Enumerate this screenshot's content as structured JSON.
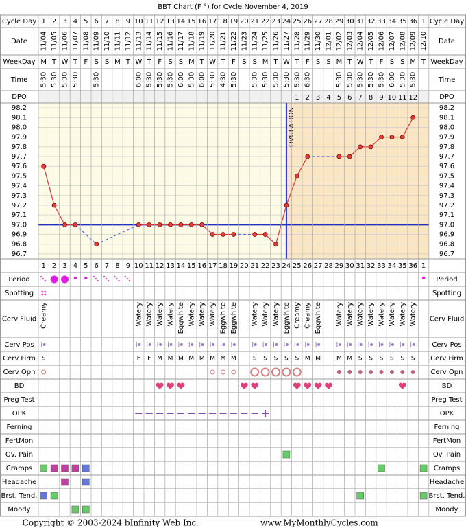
{
  "title": "BBT Chart (F °) for Cycle November 4, 2019",
  "labels": {
    "cycle_day": "Cycle Day",
    "date": "Date",
    "weekday": "WeekDay",
    "time": "Time",
    "dpo": "DPO"
  },
  "dates": [
    "11/04",
    "11/05",
    "11/06",
    "11/07",
    "11/08",
    "11/09",
    "11/10",
    "11/11",
    "11/12",
    "11/13",
    "11/14",
    "11/15",
    "11/16",
    "11/17",
    "11/18",
    "11/19",
    "11/20",
    "11/21",
    "11/22",
    "11/23",
    "11/24",
    "11/25",
    "11/26",
    "11/27",
    "11/28",
    "11/29",
    "11/30",
    "12/01",
    "12/02",
    "12/03",
    "12/04",
    "12/05",
    "12/06",
    "12/07",
    "12/08",
    "12/09",
    "12/10"
  ],
  "weekdays": [
    "M",
    "T",
    "W",
    "T",
    "F",
    "S",
    "S",
    "M",
    "T",
    "W",
    "T",
    "F",
    "S",
    "S",
    "M",
    "T",
    "W",
    "T",
    "F",
    "S",
    "S",
    "M",
    "T",
    "W",
    "T",
    "F",
    "S",
    "S",
    "M",
    "T",
    "W",
    "T",
    "F",
    "S",
    "S",
    "M",
    "T"
  ],
  "times": [
    "5:30",
    "5:30",
    "5:30",
    "5:30",
    null,
    "5:30",
    null,
    null,
    null,
    "6:00",
    "5:30",
    "5:30",
    "5:30",
    "6:00",
    "5:30",
    "6:00",
    "5:30",
    "4:30",
    "5:30",
    null,
    "5:30",
    "5:30",
    "5:30",
    "5:30",
    "5:30",
    "6:30",
    null,
    null,
    "5:30",
    "5:30",
    "5:30",
    "5:30",
    "5:30",
    "6:00",
    "5:30",
    "5:30",
    null
  ],
  "dpo": [
    null,
    null,
    null,
    null,
    null,
    null,
    null,
    null,
    null,
    null,
    null,
    null,
    null,
    null,
    null,
    null,
    null,
    null,
    null,
    null,
    null,
    null,
    null,
    null,
    1,
    2,
    3,
    4,
    5,
    6,
    7,
    8,
    9,
    10,
    11,
    12,
    null
  ],
  "chart_data": {
    "type": "line",
    "categories": [
      1,
      2,
      3,
      4,
      5,
      6,
      7,
      8,
      9,
      10,
      11,
      12,
      13,
      14,
      15,
      16,
      17,
      18,
      19,
      20,
      21,
      22,
      23,
      24,
      25,
      26,
      27,
      28,
      29,
      30,
      31,
      32,
      33,
      34,
      35,
      36,
      1
    ],
    "values": [
      97.6,
      97.2,
      97.0,
      97.0,
      null,
      96.8,
      null,
      null,
      null,
      97.0,
      97.0,
      97.0,
      97.0,
      97.0,
      97.0,
      97.0,
      96.9,
      96.9,
      96.9,
      null,
      96.9,
      96.9,
      96.8,
      97.2,
      97.5,
      97.7,
      null,
      null,
      97.7,
      97.7,
      97.8,
      97.8,
      97.9,
      97.9,
      97.9,
      98.1,
      null
    ],
    "color": "#e03030",
    "ylim": [
      96.65,
      98.25
    ],
    "yticks": [
      96.7,
      96.8,
      96.9,
      {
        "value": 97,
        "label": "97.0"
      },
      97.1,
      97.2,
      97.3,
      97.4,
      97.5,
      97.6,
      97.7,
      97.8,
      97.9,
      {
        "value": 98,
        "label": "98.0"
      },
      98.1,
      98.2
    ],
    "grid": true,
    "coverline": 97.0,
    "coverline_color": "#2030c0",
    "ovulation_day": 24,
    "ovulation_label": "OVULATION"
  },
  "rows": [
    {
      "label": "Period",
      "icons": {
        "0": "dots",
        "1": "big",
        "2": "big",
        "3": "dot",
        "4": "dot",
        "5": "dots",
        "6": "dots",
        "7": "dots",
        "8": "dots",
        "36": "dot"
      }
    },
    {
      "label": "Spotting",
      "icons": {
        "0": "spot"
      }
    },
    {
      "label": "Cerv Fluid",
      "texts": [
        "Creamy",
        null,
        null,
        null,
        null,
        null,
        null,
        null,
        null,
        "Watery",
        "Watery",
        "Watery",
        "Watery",
        "Eggwhite",
        "Watery",
        "Watery",
        "Watery",
        "Eggwhite",
        "Eggwhite",
        null,
        "Watery",
        "Watery",
        "Watery",
        "Eggwhite",
        "Creamy",
        "Creamy",
        "Eggwhite",
        null,
        "Watery",
        "Watery",
        "Watery",
        "Watery",
        "Watery",
        "Watery",
        "Watery",
        "Watery",
        null
      ]
    },
    {
      "label": "Cerv Pos",
      "icons": {
        "0": "pos",
        "9": "pos",
        "10": "pos",
        "11": "pos",
        "12": "pos",
        "13": "pos",
        "14": "pos",
        "15": "pos",
        "16": "pos",
        "17": "pos",
        "18": "pos",
        "20": "pos",
        "21": "pos",
        "22": "pos",
        "23": "pos",
        "24": "pos",
        "25": "pos",
        "26": "pos",
        "28": "pos",
        "29": "pos",
        "30": "pos",
        "31": "pos",
        "32": "pos",
        "33": "pos",
        "34": "pos",
        "35": "pos"
      }
    },
    {
      "label": "Cerv Firm",
      "texts": [
        "S",
        null,
        null,
        null,
        null,
        null,
        null,
        null,
        null,
        "F",
        "F",
        "M",
        "M",
        "M",
        "M",
        "M",
        "M",
        "M",
        "M",
        null,
        "S",
        "S",
        "S",
        "S",
        "S",
        "M",
        "M",
        null,
        "M",
        "M",
        "S",
        "S",
        "S",
        "S",
        "S",
        "S",
        null
      ]
    },
    {
      "label": "Cerv Opn",
      "icons": {
        "0": "o",
        "16": "o",
        "17": "o",
        "18": "o",
        "20": "O",
        "21": "O",
        "22": "O",
        "23": "O",
        "24": "O",
        "28": "fill",
        "29": "fill",
        "30": "fill",
        "31": "fill",
        "32": "fill",
        "33": "fill",
        "34": "fill",
        "35": "fill"
      }
    },
    {
      "label": "BD",
      "icons": {
        "11": "heart",
        "12": "heart",
        "13": "heart",
        "19": "heart",
        "20": "heart",
        "24": "heart",
        "25": "heart",
        "26": "heart",
        "27": "heart",
        "34": "heart"
      }
    },
    {
      "label": "Preg Test"
    },
    {
      "label": "OPK",
      "icons": {
        "9": "neg",
        "10": "neg",
        "11": "neg",
        "12": "neg",
        "13": "neg",
        "14": "neg",
        "15": "neg",
        "16": "neg",
        "17": "neg",
        "18": "neg",
        "19": "neg",
        "20": "neg",
        "21": "plus"
      }
    },
    {
      "label": "Ferning"
    },
    {
      "label": "FertMon"
    },
    {
      "label": "Ov. Pain",
      "squares": {
        "23": "#66cc66"
      }
    },
    {
      "label": "Cramps",
      "squares": {
        "0": "#66cc66",
        "1": "#c040a0",
        "2": "#c040a0",
        "3": "#c040a0",
        "4": "#6677dd",
        "32": "#66cc66",
        "36": "#66cc66"
      }
    },
    {
      "label": "Headache",
      "squares": {
        "2": "#c040a0",
        "4": "#6677dd"
      }
    },
    {
      "label": "Brst. Tend.",
      "squares": {
        "0": "#6677dd",
        "1": "#66cc66",
        "30": "#66cc66",
        "36": "#66cc66"
      }
    },
    {
      "label": "Moody",
      "squares": {
        "3": "#66cc66",
        "4": "#66cc66"
      }
    }
  ],
  "footer": {
    "copyright": "Copyright © 2003-2024 bInfinity Web Inc.",
    "website": "www.MyMonthlyCycles.com"
  }
}
